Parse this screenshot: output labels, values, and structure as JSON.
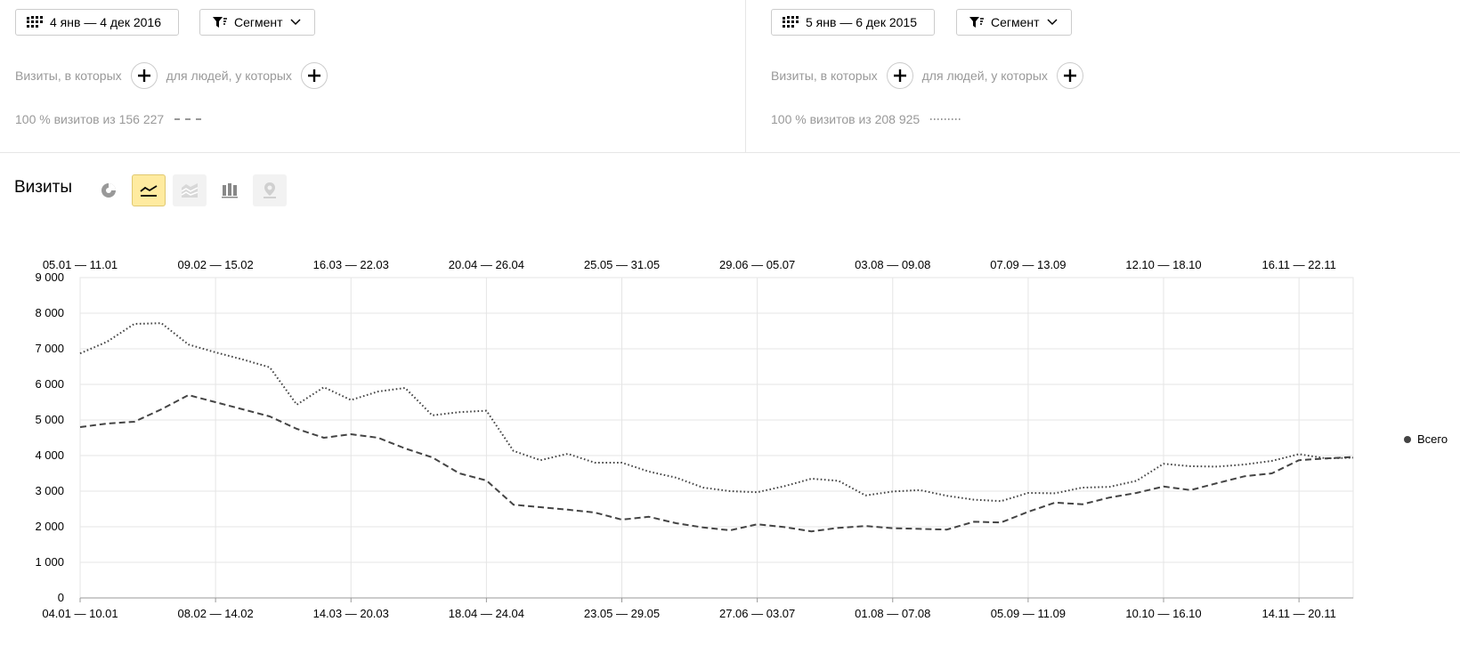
{
  "left_panel": {
    "date_range": "4 янв — 4 дек 2016",
    "segment_label": "Сегмент",
    "filter_visits_label": "Визиты, в которых",
    "filter_people_label": "для людей, у которых",
    "stats": "100 % визитов из 156 227",
    "line_style": "dashed"
  },
  "right_panel": {
    "date_range": "5 янв — 6 дек 2015",
    "segment_label": "Сегмент",
    "filter_visits_label": "Визиты, в которых",
    "filter_people_label": "для людей, у которых",
    "stats": "100 % визитов из 208 925",
    "line_style": "dotted"
  },
  "report": {
    "title": "Визиты",
    "view_icons": [
      "pie-chart-icon",
      "line-chart-icon",
      "area-chart-icon",
      "bar-chart-icon",
      "map-icon"
    ],
    "active_view": "line-chart-icon",
    "legend_label": "Всего"
  },
  "colors": {
    "line": "#444444",
    "grid": "#e5e5e5",
    "active_button_bg": "#ffeba0",
    "muted_text": "#999999"
  },
  "chart_data": {
    "type": "line",
    "ylim": [
      0,
      9000
    ],
    "yticks": [
      "0",
      "1 000",
      "2 000",
      "3 000",
      "4 000",
      "5 000",
      "6 000",
      "7 000",
      "8 000",
      "9 000"
    ],
    "x_top_labels": [
      "05.01 — 11.01",
      "09.02 — 15.02",
      "16.03 — 22.03",
      "20.04 — 26.04",
      "25.05 — 31.05",
      "29.06 — 05.07",
      "03.08 — 09.08",
      "07.09 — 13.09",
      "12.10 — 18.10",
      "16.11 — 22.11"
    ],
    "x_bottom_labels": [
      "04.01 — 10.01",
      "08.02 — 14.02",
      "14.03 — 20.03",
      "18.04 — 24.04",
      "23.05 — 29.05",
      "27.06 — 03.07",
      "01.08 — 07.08",
      "05.09 — 11.09",
      "10.10 — 16.10",
      "14.11 — 20.11"
    ],
    "label_step": 5,
    "grid": true,
    "legend_position": "right",
    "series": [
      {
        "name": "4 янв — 4 дек 2016",
        "style": "dashed",
        "values": [
          4800,
          4900,
          4950,
          5300,
          5700,
          5500,
          5300,
          5100,
          4750,
          4500,
          4600,
          4500,
          4200,
          3950,
          3500,
          3300,
          2620,
          2550,
          2480,
          2400,
          2200,
          2280,
          2100,
          1980,
          1900,
          2070,
          1990,
          1870,
          1970,
          2020,
          1960,
          1940,
          1920,
          2140,
          2120,
          2420,
          2680,
          2630,
          2820,
          2950,
          3130,
          3030,
          3230,
          3420,
          3500,
          3870,
          3920,
          3960
        ]
      },
      {
        "name": "5 янв — 6 дек 2015",
        "style": "dotted",
        "values": [
          6870,
          7200,
          7700,
          7720,
          7120,
          6900,
          6700,
          6480,
          5430,
          5920,
          5560,
          5800,
          5900,
          5130,
          5220,
          5260,
          4130,
          3870,
          4050,
          3800,
          3800,
          3550,
          3380,
          3100,
          3000,
          2970,
          3140,
          3350,
          3290,
          2880,
          2990,
          3030,
          2870,
          2760,
          2720,
          2950,
          2940,
          3100,
          3120,
          3290,
          3770,
          3700,
          3690,
          3750,
          3850,
          4040,
          3920,
          3940
        ]
      }
    ]
  }
}
